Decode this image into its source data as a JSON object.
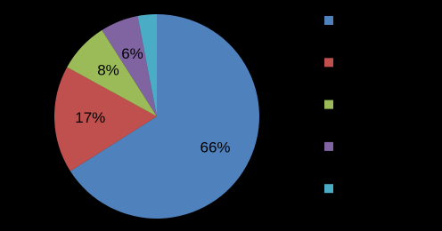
{
  "chart_data": {
    "type": "pie",
    "categories": [
      null,
      null,
      null,
      null,
      null
    ],
    "values": [
      66,
      17,
      8,
      6,
      3
    ],
    "value_labels": [
      "66%",
      "17%",
      "8%",
      "6%",
      null
    ],
    "colors": [
      "#4f81bd",
      "#c0504d",
      "#9bbb59",
      "#8064a2",
      "#4bacc6"
    ],
    "legend": "right"
  }
}
